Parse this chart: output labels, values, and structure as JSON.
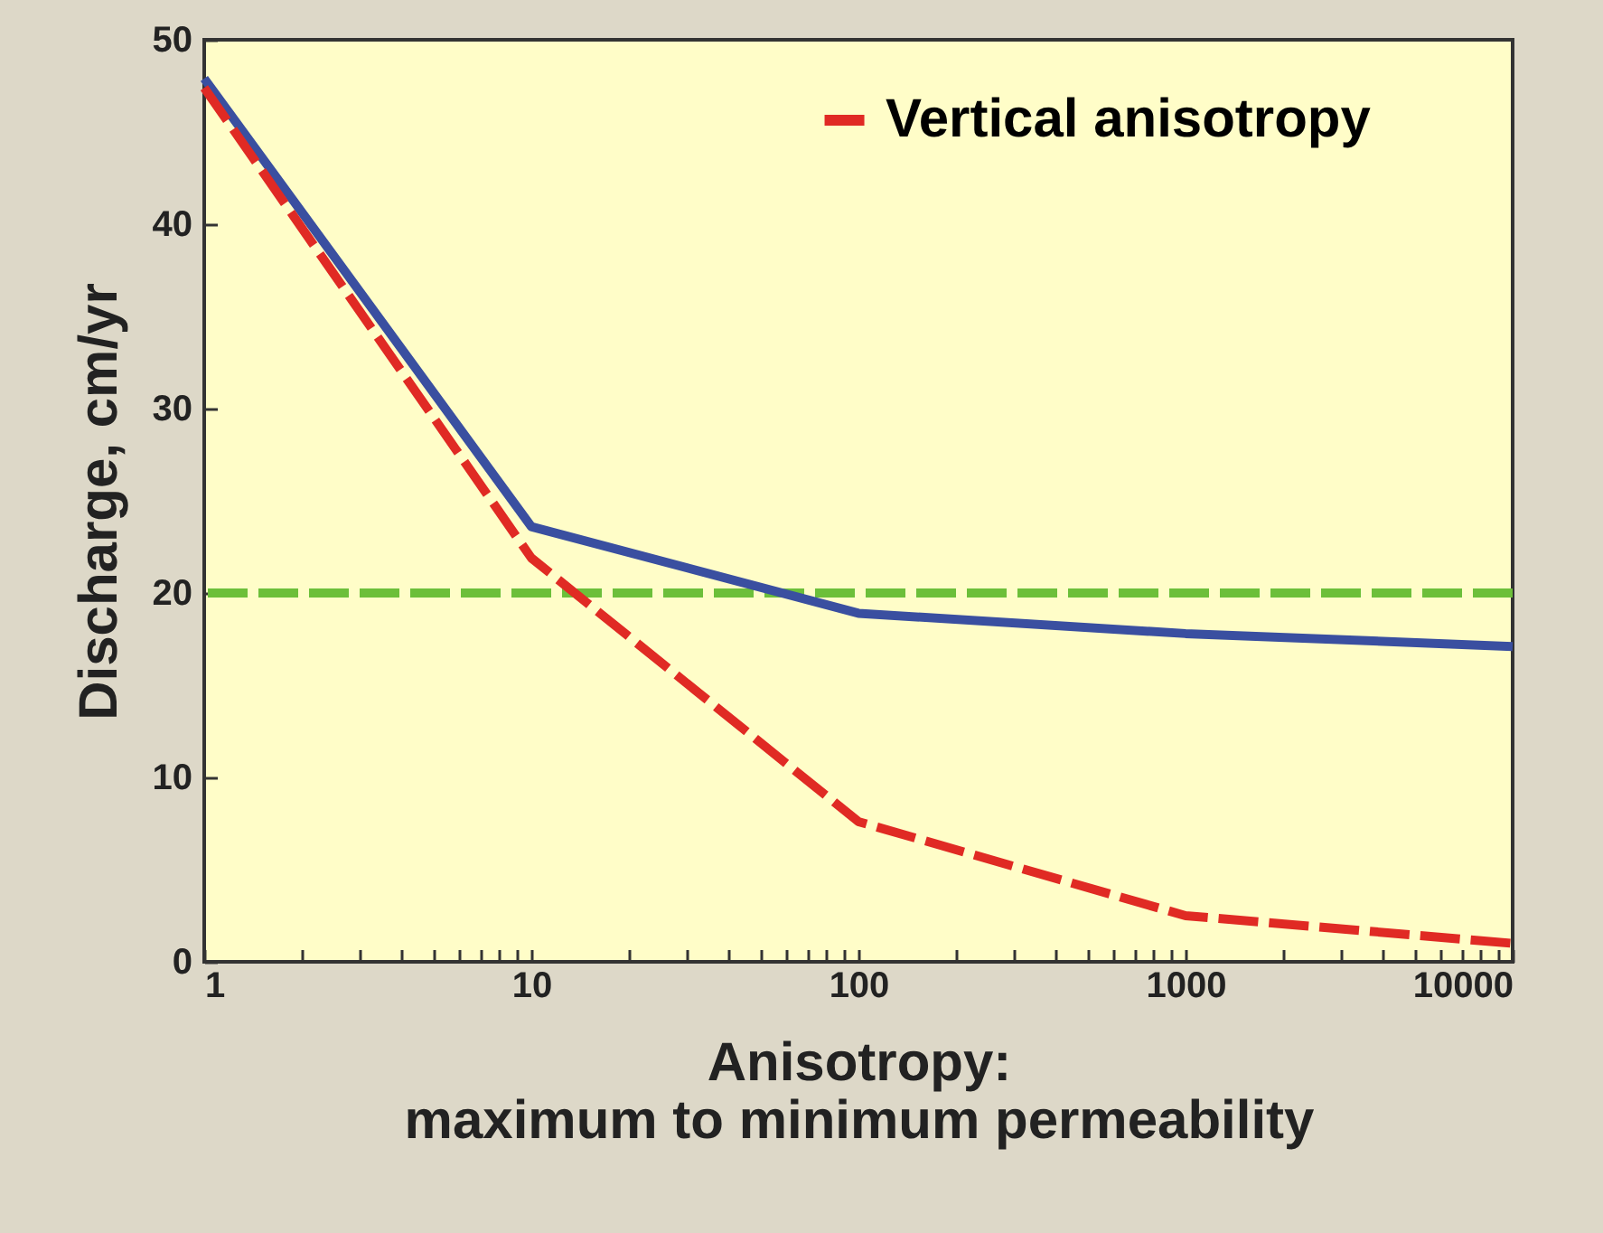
{
  "chart_data": {
    "type": "line",
    "xlabel": "Anisotropy:\nmaximum to minimum permeability",
    "ylabel": "Discharge, cm/yr",
    "x": [
      1,
      10,
      100,
      1000,
      10000
    ],
    "series": [
      {
        "color": "#3a4fa0",
        "values": [
          47.9,
          23.6,
          18.9,
          17.8,
          17.1
        ],
        "line_style": "solid"
      },
      {
        "name": "Vertical anisotropy",
        "color": "#e02a24",
        "values": [
          47.4,
          21.9,
          7.6,
          2.5,
          1.0
        ],
        "line_style": "dashed"
      }
    ],
    "log": "x",
    "xlim": [
      1,
      10000
    ],
    "ylim": [
      0,
      50
    ],
    "xticks": [
      1,
      {
        "value": 2,
        "label": null
      },
      {
        "value": 3,
        "label": null
      },
      {
        "value": 4,
        "label": null
      },
      {
        "value": 5,
        "label": null
      },
      {
        "value": 6,
        "label": null
      },
      {
        "value": 7,
        "label": null
      },
      {
        "value": 8,
        "label": null
      },
      {
        "value": 9,
        "label": null
      },
      10,
      {
        "value": 20,
        "label": null
      },
      {
        "value": 30,
        "label": null
      },
      {
        "value": 40,
        "label": null
      },
      {
        "value": 50,
        "label": null
      },
      {
        "value": 60,
        "label": null
      },
      {
        "value": 70,
        "label": null
      },
      {
        "value": 80,
        "label": null
      },
      {
        "value": 90,
        "label": null
      },
      100,
      {
        "value": 200,
        "label": null
      },
      {
        "value": 300,
        "label": null
      },
      {
        "value": 400,
        "label": null
      },
      {
        "value": 500,
        "label": null
      },
      {
        "value": 600,
        "label": null
      },
      {
        "value": 700,
        "label": null
      },
      {
        "value": 800,
        "label": null
      },
      {
        "value": 900,
        "label": null
      },
      1000,
      {
        "value": 2000,
        "label": null
      },
      {
        "value": 3000,
        "label": null
      },
      {
        "value": 4000,
        "label": null
      },
      {
        "value": 5000,
        "label": null
      },
      {
        "value": 6000,
        "label": null
      },
      {
        "value": 7000,
        "label": null
      },
      {
        "value": 8000,
        "label": null
      },
      {
        "value": 9000,
        "label": null
      },
      10000
    ],
    "yticks": [
      0,
      10,
      20,
      30,
      40,
      50
    ],
    "ref_lines": [
      {
        "axis": "y",
        "value": 20,
        "color": "#6cbf3a",
        "line_style": "dashed"
      }
    ],
    "grid": false,
    "legend": "top right",
    "marker": "none"
  }
}
